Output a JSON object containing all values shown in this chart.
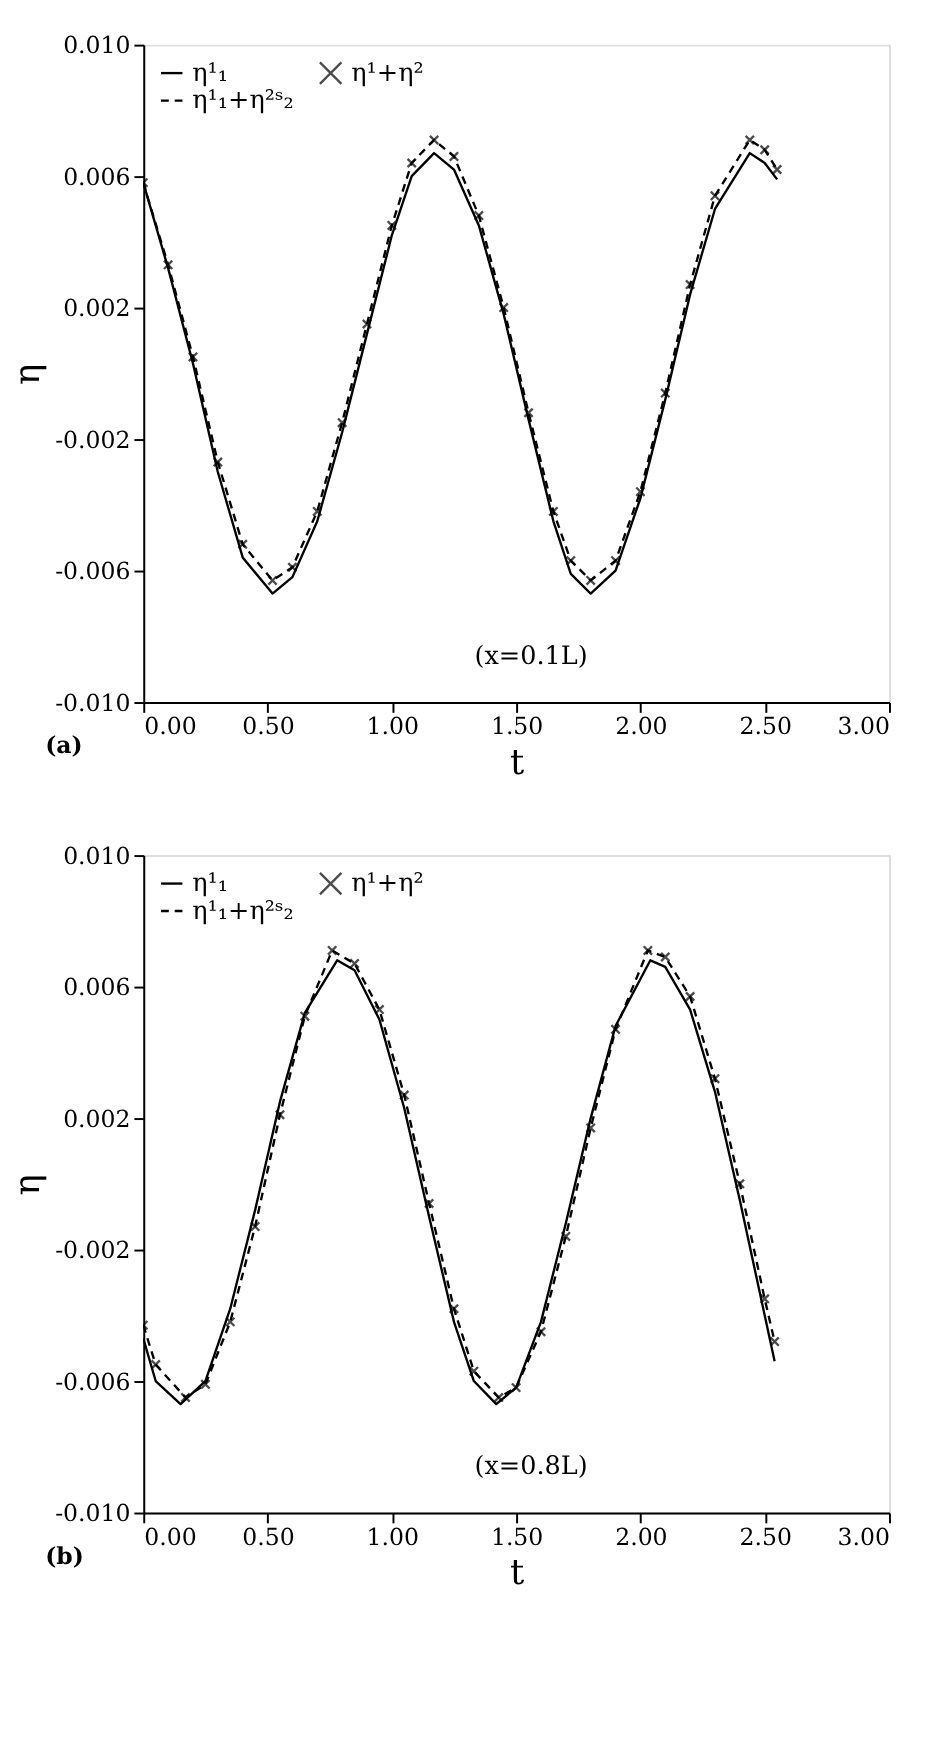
{
  "chart_data": [
    {
      "type": "line",
      "xlabel": "t",
      "ylabel": "η",
      "annotations": [
        "(x=0.1L)",
        "(a)"
      ],
      "legend": "top left",
      "grid": false,
      "xlim": [
        0,
        3
      ],
      "ylim": [
        -0.01,
        0.01
      ],
      "xticks": [
        {
          "value": 0,
          "label": "0.00"
        },
        {
          "value": 0.5,
          "label": "0.50"
        },
        {
          "value": 1,
          "label": "1.00"
        },
        {
          "value": 1.5,
          "label": "1.50"
        },
        {
          "value": 2,
          "label": "2.00"
        },
        {
          "value": 2.5,
          "label": "2.50"
        },
        {
          "value": 3,
          "label": "3.00"
        }
      ],
      "yticks": [
        {
          "value": -0.01,
          "label": "-0.010"
        },
        {
          "value": -0.006,
          "label": "-0.006"
        },
        {
          "value": -0.002,
          "label": "-0.002"
        },
        {
          "value": 0.002,
          "label": "0.002"
        },
        {
          "value": 0.006,
          "label": "0.006"
        },
        {
          "value": 0.01,
          "label": "0.010"
        }
      ],
      "series": [
        {
          "name": "η¹₁",
          "line_style": "solid",
          "color": "#000000",
          "x": [
            0,
            0.1,
            0.2,
            0.3,
            0.4,
            0.52,
            0.6,
            0.7,
            0.8,
            0.9,
            1.0,
            1.08,
            1.17,
            1.25,
            1.35,
            1.45,
            1.55,
            1.65,
            1.72,
            1.8,
            1.9,
            2.0,
            2.1,
            2.2,
            2.3,
            2.44,
            2.5,
            2.55
          ],
          "values": [
            0.0058,
            0.0032,
            0.0003,
            -0.003,
            -0.0056,
            -0.0067,
            -0.0062,
            -0.0045,
            -0.0018,
            0.0012,
            0.0042,
            0.006,
            0.0067,
            0.0062,
            0.0045,
            0.0018,
            -0.0014,
            -0.0045,
            -0.0061,
            -0.0067,
            -0.006,
            -0.0038,
            -0.0008,
            0.0024,
            0.005,
            0.0067,
            0.0064,
            0.0059
          ]
        },
        {
          "name": "η¹₁+η²ˢ₂",
          "line_style": "dashed",
          "color": "#000000",
          "x": [
            0,
            0.1,
            0.2,
            0.3,
            0.4,
            0.52,
            0.6,
            0.7,
            0.8,
            0.9,
            1.0,
            1.08,
            1.17,
            1.25,
            1.35,
            1.45,
            1.55,
            1.65,
            1.72,
            1.8,
            1.9,
            2.0,
            2.1,
            2.2,
            2.3,
            2.44,
            2.5,
            2.55
          ],
          "values": [
            0.0058,
            0.0033,
            0.0005,
            -0.0027,
            -0.0052,
            -0.0063,
            -0.0059,
            -0.0042,
            -0.0015,
            0.0015,
            0.0045,
            0.0064,
            0.0071,
            0.0066,
            0.0048,
            0.002,
            -0.0012,
            -0.0042,
            -0.0057,
            -0.0063,
            -0.0057,
            -0.0036,
            -0.0006,
            0.0027,
            0.0054,
            0.0071,
            0.0068,
            0.0062
          ]
        },
        {
          "name": "η¹+η²",
          "type": "scatter",
          "marker": "cross",
          "color": "#000000",
          "x": [
            0,
            0.1,
            0.2,
            0.3,
            0.4,
            0.52,
            0.6,
            0.7,
            0.8,
            0.9,
            1.0,
            1.08,
            1.17,
            1.25,
            1.35,
            1.45,
            1.55,
            1.65,
            1.72,
            1.8,
            1.9,
            2.0,
            2.1,
            2.2,
            2.3,
            2.44,
            2.5,
            2.55
          ],
          "values": [
            0.0058,
            0.0033,
            0.0005,
            -0.0027,
            -0.0052,
            -0.0063,
            -0.0059,
            -0.0042,
            -0.0015,
            0.0015,
            0.0045,
            0.0064,
            0.0071,
            0.0066,
            0.0048,
            0.002,
            -0.0012,
            -0.0042,
            -0.0057,
            -0.0063,
            -0.0057,
            -0.0036,
            -0.0006,
            0.0027,
            0.0054,
            0.0071,
            0.0068,
            0.0062
          ]
        }
      ]
    },
    {
      "type": "line",
      "xlabel": "t",
      "ylabel": "η",
      "annotations": [
        "(x=0.8L)",
        "(b)"
      ],
      "legend": "top left",
      "grid": false,
      "xlim": [
        0,
        3
      ],
      "ylim": [
        -0.01,
        0.01
      ],
      "xticks": [
        {
          "value": 0,
          "label": "0.00"
        },
        {
          "value": 0.5,
          "label": "0.50"
        },
        {
          "value": 1,
          "label": "1.00"
        },
        {
          "value": 1.5,
          "label": "1.50"
        },
        {
          "value": 2,
          "label": "2.00"
        },
        {
          "value": 2.5,
          "label": "2.50"
        },
        {
          "value": 3,
          "label": "3.00"
        }
      ],
      "yticks": [
        {
          "value": -0.01,
          "label": "-0.010"
        },
        {
          "value": -0.006,
          "label": "-0.006"
        },
        {
          "value": -0.002,
          "label": "-0.002"
        },
        {
          "value": 0.002,
          "label": "0.002"
        },
        {
          "value": 0.006,
          "label": "0.006"
        },
        {
          "value": 0.01,
          "label": "0.010"
        }
      ],
      "series": [
        {
          "name": "η¹₁",
          "line_style": "solid",
          "color": "#000000",
          "x": [
            0,
            0.05,
            0.15,
            0.25,
            0.35,
            0.45,
            0.55,
            0.65,
            0.78,
            0.85,
            0.95,
            1.05,
            1.15,
            1.25,
            1.33,
            1.42,
            1.5,
            1.6,
            1.7,
            1.8,
            1.9,
            2.04,
            2.1,
            2.2,
            2.3,
            2.4,
            2.5,
            2.54
          ],
          "values": [
            -0.0047,
            -0.006,
            -0.0067,
            -0.006,
            -0.0038,
            -0.0008,
            0.0025,
            0.0052,
            0.0068,
            0.0065,
            0.005,
            0.0023,
            -0.001,
            -0.0042,
            -0.006,
            -0.0067,
            -0.0062,
            -0.0042,
            -0.0012,
            0.002,
            0.0048,
            0.0068,
            0.0066,
            0.0053,
            0.0028,
            -0.0005,
            -0.004,
            -0.0054
          ]
        },
        {
          "name": "η¹₁+η²ˢ₂",
          "line_style": "dashed",
          "color": "#000000",
          "x": [
            0,
            0.05,
            0.17,
            0.25,
            0.35,
            0.45,
            0.55,
            0.65,
            0.76,
            0.85,
            0.95,
            1.05,
            1.15,
            1.25,
            1.33,
            1.43,
            1.5,
            1.6,
            1.7,
            1.8,
            1.9,
            2.03,
            2.1,
            2.2,
            2.3,
            2.4,
            2.5,
            2.54
          ],
          "values": [
            -0.0043,
            -0.0055,
            -0.0065,
            -0.0061,
            -0.0042,
            -0.0013,
            0.0021,
            0.0051,
            0.0071,
            0.0067,
            0.0053,
            0.0027,
            -0.0006,
            -0.0038,
            -0.0057,
            -0.0065,
            -0.0062,
            -0.0045,
            -0.0016,
            0.0017,
            0.0047,
            0.0071,
            0.0069,
            0.0057,
            0.0032,
            0.0,
            -0.0035,
            -0.0048
          ]
        },
        {
          "name": "η¹+η²",
          "type": "scatter",
          "marker": "cross",
          "color": "#000000",
          "x": [
            0,
            0.05,
            0.17,
            0.25,
            0.35,
            0.45,
            0.55,
            0.65,
            0.76,
            0.85,
            0.95,
            1.05,
            1.15,
            1.25,
            1.33,
            1.43,
            1.5,
            1.6,
            1.7,
            1.8,
            1.9,
            2.03,
            2.1,
            2.2,
            2.3,
            2.4,
            2.5,
            2.54
          ],
          "values": [
            -0.0043,
            -0.0055,
            -0.0065,
            -0.0061,
            -0.0042,
            -0.0013,
            0.0021,
            0.0051,
            0.0071,
            0.0067,
            0.0053,
            0.0027,
            -0.0006,
            -0.0038,
            -0.0057,
            -0.0065,
            -0.0062,
            -0.0045,
            -0.0016,
            0.0017,
            0.0047,
            0.0071,
            0.0069,
            0.0057,
            0.0032,
            0.0,
            -0.0035,
            -0.0048
          ]
        }
      ]
    }
  ]
}
